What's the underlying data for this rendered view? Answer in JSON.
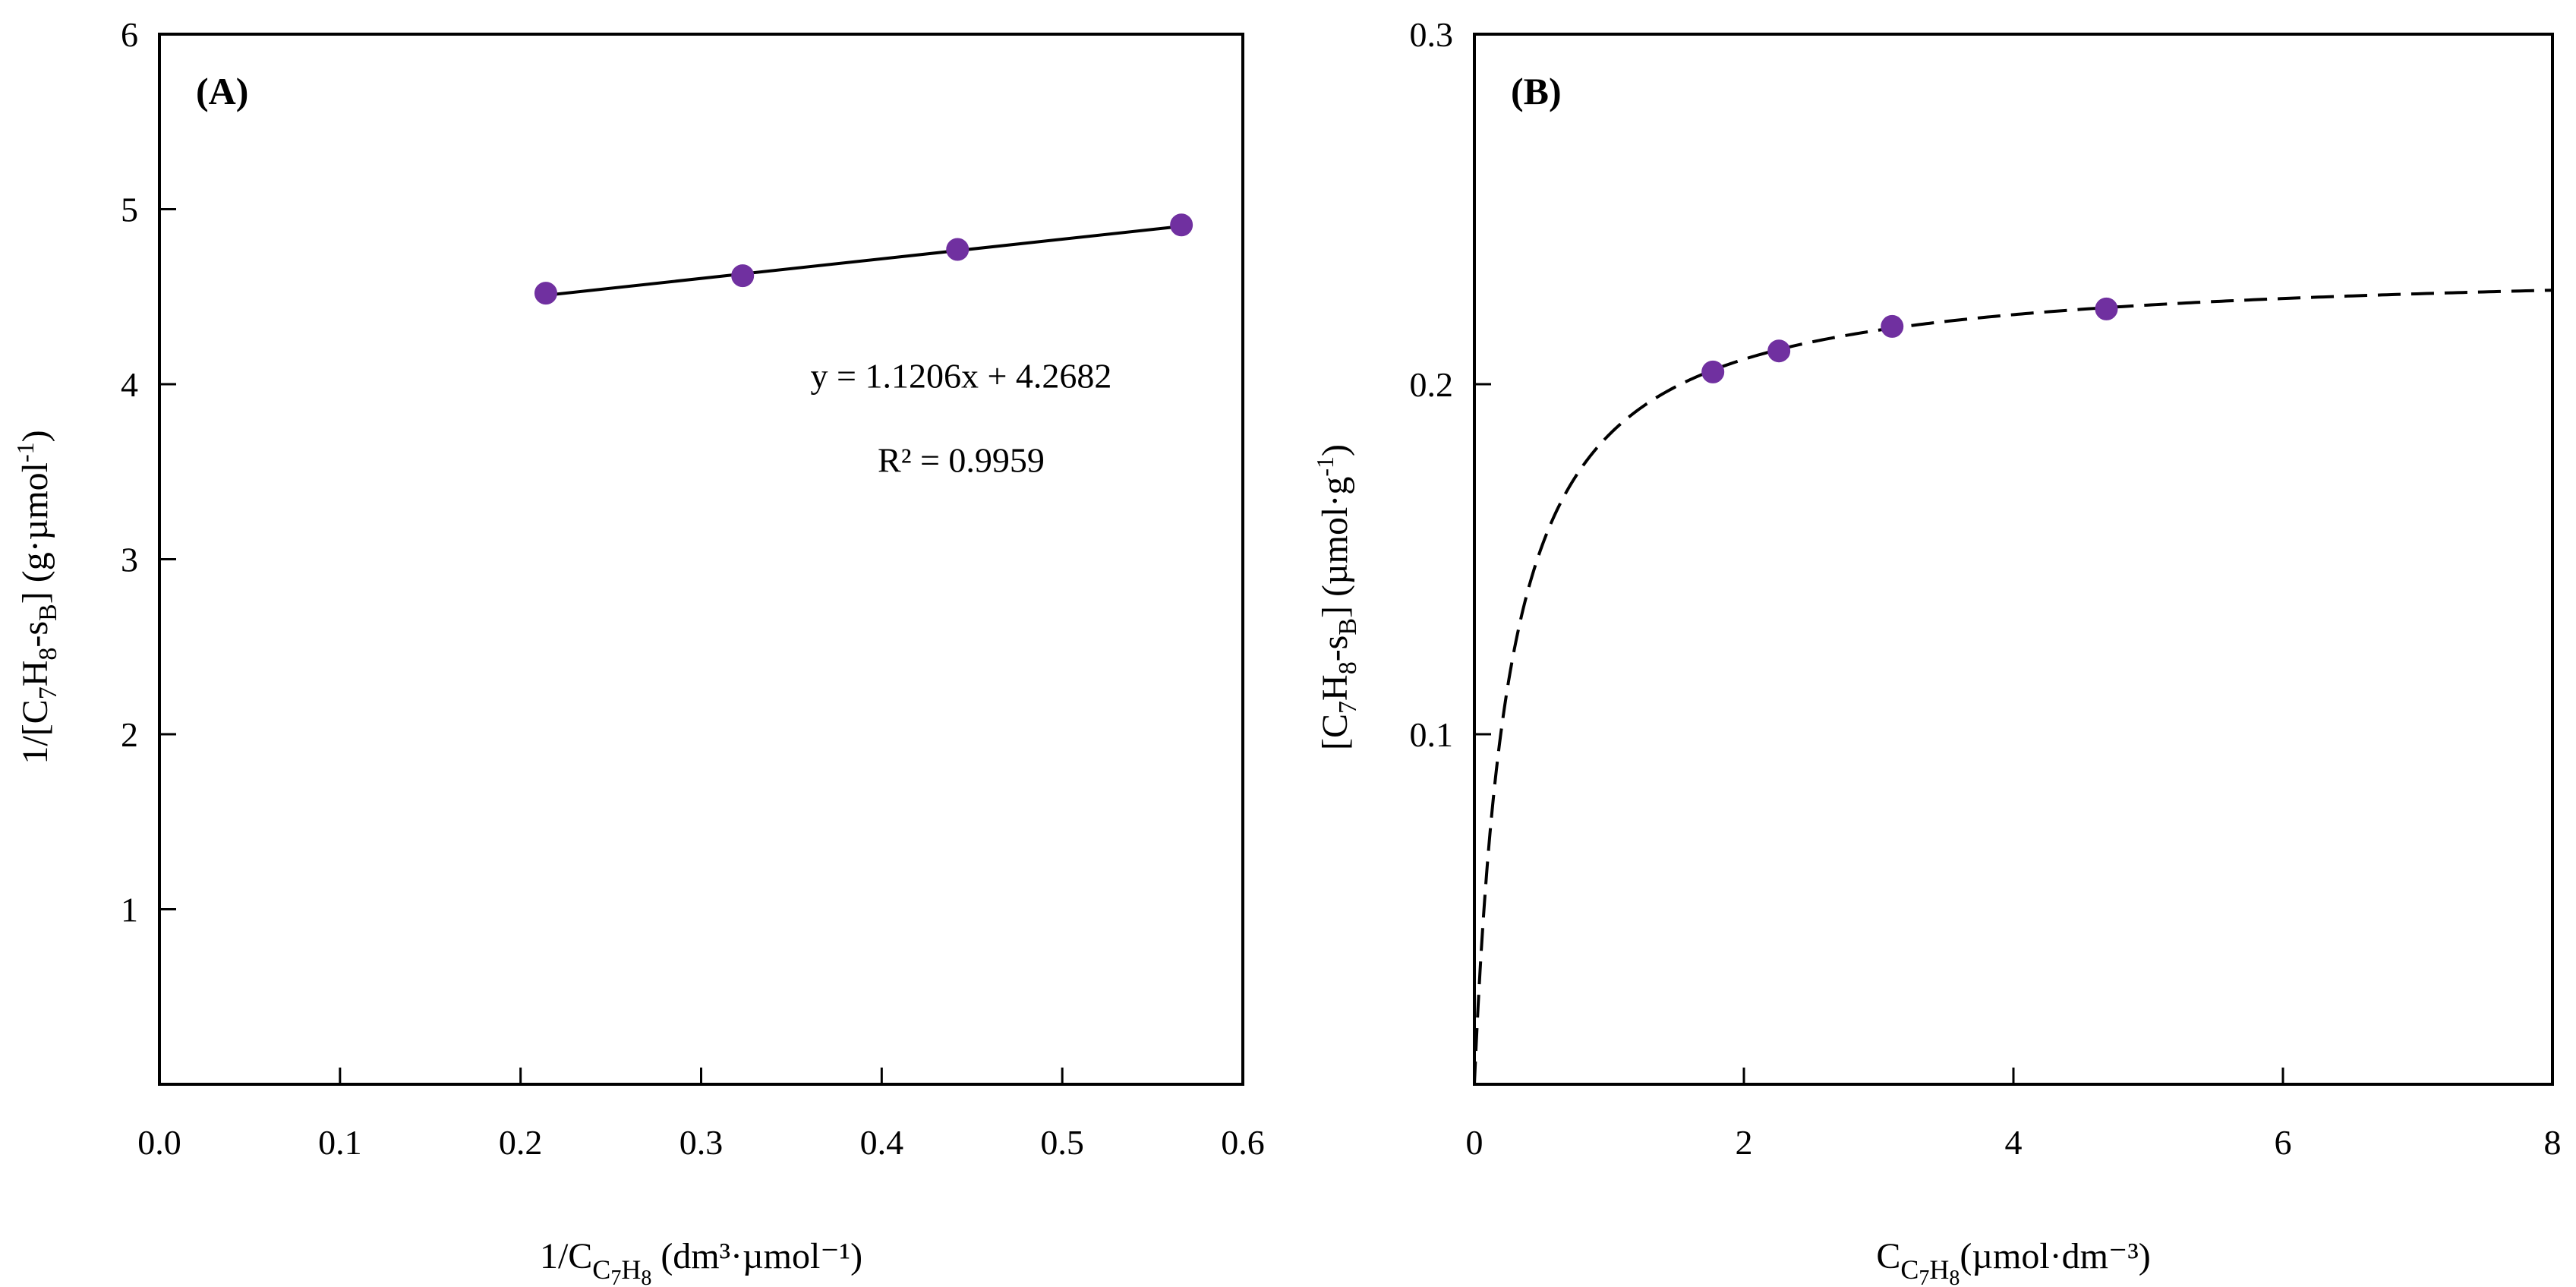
{
  "figure": "Two-panel adsorption plot",
  "colors": {
    "point": "#7030a0",
    "line": "#000000"
  },
  "chart_data": [
    {
      "panel_label": "(A)",
      "type": "scatter",
      "title": "",
      "xlabel": {
        "prefix": "1/C",
        "sub": "C7H8",
        "suffix": " (dm³·µmol⁻¹)"
      },
      "ylabel": {
        "text": "1/[C7H8-sB] (g·µmol-1)",
        "parts": [
          "1/[C",
          "7",
          "H",
          "8",
          "-s",
          "B",
          "] (g·µmol",
          "-1",
          ")"
        ]
      },
      "xlim": [
        0.0,
        0.6
      ],
      "ylim": [
        0,
        6
      ],
      "xticks": [
        0.0,
        0.1,
        0.2,
        0.3,
        0.4,
        0.5,
        0.6
      ],
      "xtick_labels": [
        "0.0",
        "0.1",
        "0.2",
        "0.3",
        "0.4",
        "0.5",
        "0.6"
      ],
      "yticks": [
        1,
        2,
        3,
        4,
        5,
        6
      ],
      "ytick_labels": [
        "1",
        "2",
        "3",
        "4",
        "5",
        "6"
      ],
      "series": [
        {
          "name": "data",
          "x": [
            0.214,
            0.323,
            0.442,
            0.566
          ],
          "y": [
            4.52,
            4.62,
            4.77,
            4.91
          ]
        }
      ],
      "fit": {
        "type": "linear",
        "slope": 1.1206,
        "intercept": 4.2682,
        "x_range": [
          0.214,
          0.566
        ],
        "style": "solid"
      },
      "annotations": {
        "equation": "y = 1.1206x + 4.2682",
        "r2": "R² = 0.9959"
      },
      "grid": false
    },
    {
      "panel_label": "(B)",
      "type": "scatter",
      "title": "",
      "xlabel": {
        "prefix": "C",
        "sub": "C7H8",
        "suffix": "(µmol·dm⁻³)"
      },
      "ylabel": {
        "text": "[C7H8-sB] (µmol·g-1)",
        "parts": [
          "[C",
          "7",
          "H",
          "8",
          "-s",
          "B",
          "] (µmol·g",
          "-1",
          ")"
        ]
      },
      "xlim": [
        0,
        8
      ],
      "ylim": [
        0,
        0.3
      ],
      "xticks": [
        0,
        2,
        4,
        6,
        8
      ],
      "xtick_labels": [
        "0",
        "2",
        "4",
        "6",
        "8"
      ],
      "yticks": [
        0.1,
        0.2,
        0.3
      ],
      "ytick_labels": [
        "0.1",
        "0.2",
        "0.3"
      ],
      "series": [
        {
          "name": "data",
          "x": [
            1.77,
            2.26,
            3.1,
            4.69
          ],
          "y": [
            0.2035,
            0.2095,
            0.2165,
            0.2215
          ]
        }
      ],
      "fit": {
        "type": "langmuir",
        "qmax": 0.2343,
        "K": 3.809,
        "x_range": [
          0,
          8
        ],
        "style": "dashed"
      },
      "grid": false
    }
  ]
}
